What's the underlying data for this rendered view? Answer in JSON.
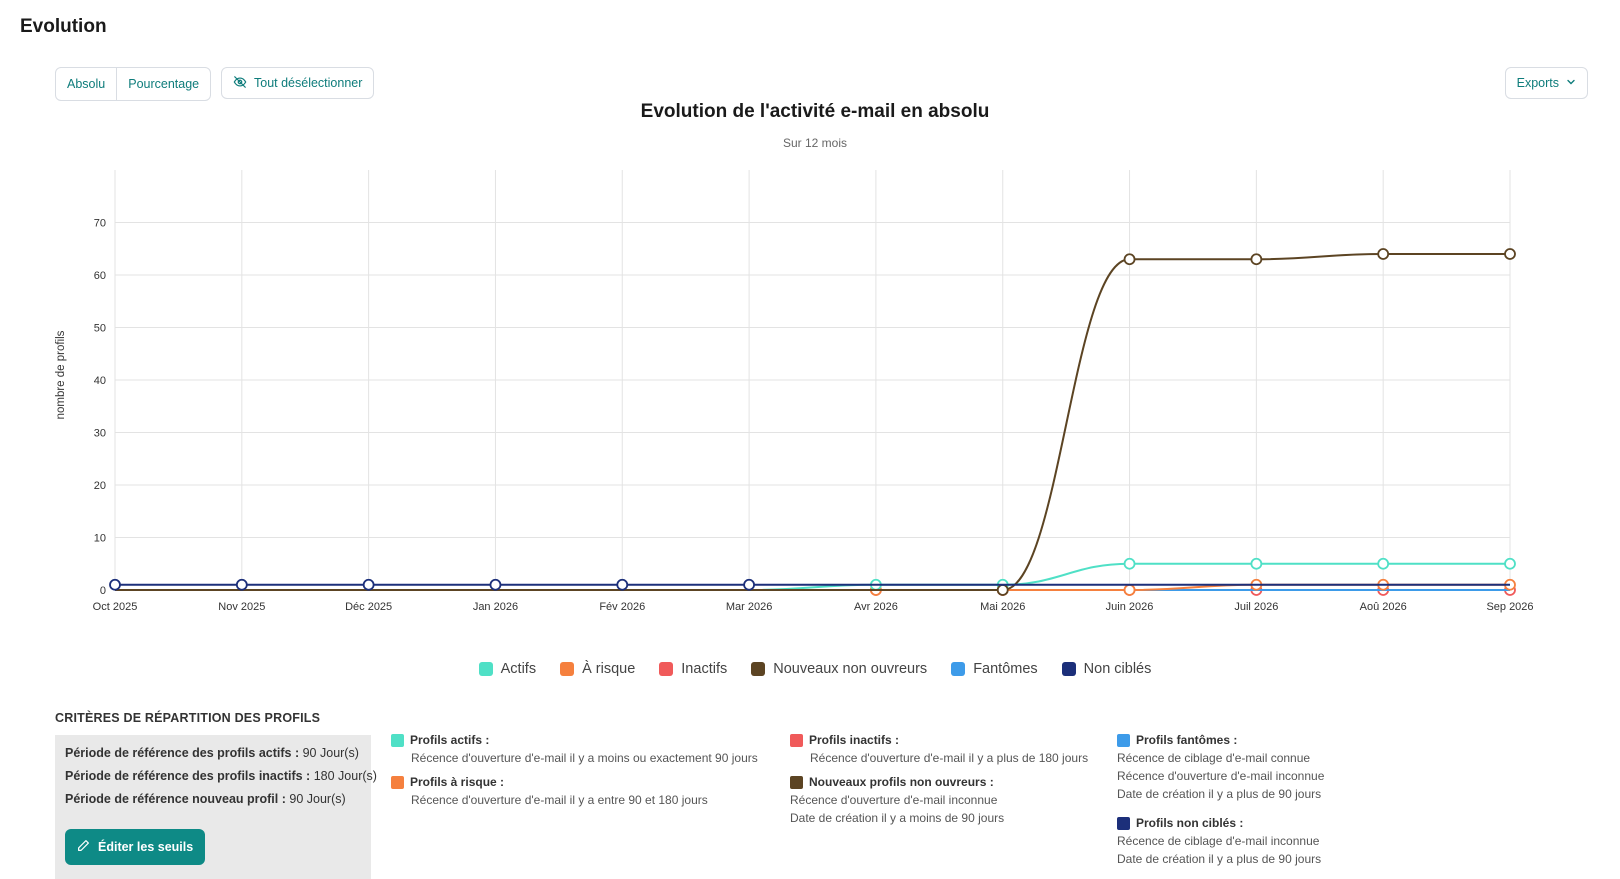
{
  "page": {
    "title": "Evolution"
  },
  "toolbar": {
    "absolu_label": "Absolu",
    "pourcentage_label": "Pourcentage",
    "deselect_label": "Tout désélectionner",
    "exports_label": "Exports"
  },
  "chart_data": {
    "type": "line",
    "title": "Evolution de l'activité e-mail en absolu",
    "subtitle": "Sur 12 mois",
    "ylabel": "nombre de profils",
    "xlabel": "",
    "ylim": [
      0,
      70
    ],
    "yticks": [
      0,
      10,
      20,
      30,
      40,
      50,
      60,
      70
    ],
    "grid": true,
    "legend_position": "bottom-center",
    "categories": [
      "Oct 2025",
      "Nov 2025",
      "Déc 2025",
      "Jan 2026",
      "Fév 2026",
      "Mar 2026",
      "Avr 2026",
      "Mai 2026",
      "Juin 2026",
      "Juil 2026",
      "Aoû 2026",
      "Sep 2026"
    ],
    "series": [
      {
        "name": "Actifs",
        "color": "#4fe0c6",
        "values": [
          0,
          0,
          0,
          0,
          0,
          0,
          1,
          1,
          5,
          5,
          5,
          5
        ]
      },
      {
        "name": "À risque",
        "color": "#f5803e",
        "values": [
          0,
          0,
          0,
          0,
          0,
          0,
          0,
          0,
          0,
          1,
          1,
          1
        ]
      },
      {
        "name": "Inactifs",
        "color": "#f05a5a",
        "values": [
          0,
          0,
          0,
          0,
          0,
          0,
          0,
          0,
          0,
          0,
          0,
          0
        ]
      },
      {
        "name": "Nouveaux non ouvreurs",
        "color": "#5c4423",
        "values": [
          0,
          0,
          0,
          0,
          0,
          0,
          0,
          0,
          63,
          63,
          64,
          64
        ]
      },
      {
        "name": "Fantômes",
        "color": "#3d9be9",
        "values": [
          0,
          0,
          0,
          0,
          0,
          0,
          0,
          0,
          0,
          0,
          0,
          0
        ]
      },
      {
        "name": "Non ciblés",
        "color": "#1c2f7a",
        "values": [
          1,
          1,
          1,
          1,
          1,
          1,
          1,
          1,
          1,
          1,
          1,
          1
        ]
      }
    ]
  },
  "criteria": {
    "heading": "CRITÈRES DE RÉPARTITION DES PROFILS",
    "ref": {
      "actifs_label": "Période de référence des profils actifs :",
      "actifs_value": "90 Jour(s)",
      "inactifs_label": "Période de référence des profils inactifs :",
      "inactifs_value": "180 Jour(s)",
      "nouveau_label": "Période de référence nouveau profil :",
      "nouveau_value": "90 Jour(s)"
    },
    "edit_label": "Éditer les seuils",
    "actifs": {
      "title": "Profils actifs :",
      "lines": [
        "Récence d'ouverture d'e-mail il y a moins ou exactement 90 jours"
      ]
    },
    "a_risque": {
      "title": "Profils à risque :",
      "lines": [
        "Récence d'ouverture d'e-mail il y a entre 90 et 180 jours"
      ]
    },
    "inactifs": {
      "title": "Profils inactifs :",
      "lines": [
        "Récence d'ouverture d'e-mail il y a plus de 180 jours"
      ]
    },
    "nouveaux": {
      "title": "Nouveaux profils non ouvreurs :",
      "lines": [
        "Récence d'ouverture d'e-mail inconnue",
        "Date de création il y a moins de 90 jours"
      ]
    },
    "fantomes": {
      "title": "Profils fantômes :",
      "lines": [
        "Récence de ciblage d'e-mail connue",
        "Récence d'ouverture d'e-mail inconnue",
        "Date de création il y a plus de 90 jours"
      ]
    },
    "non_cibles": {
      "title": "Profils non ciblés :",
      "lines": [
        "Récence de ciblage d'e-mail inconnue",
        "Date de création il y a plus de 90 jours"
      ]
    }
  },
  "icons": {
    "deselect": "eye-off-icon",
    "exports_chevron": "chevron-down-icon",
    "edit": "pencil-icon"
  }
}
